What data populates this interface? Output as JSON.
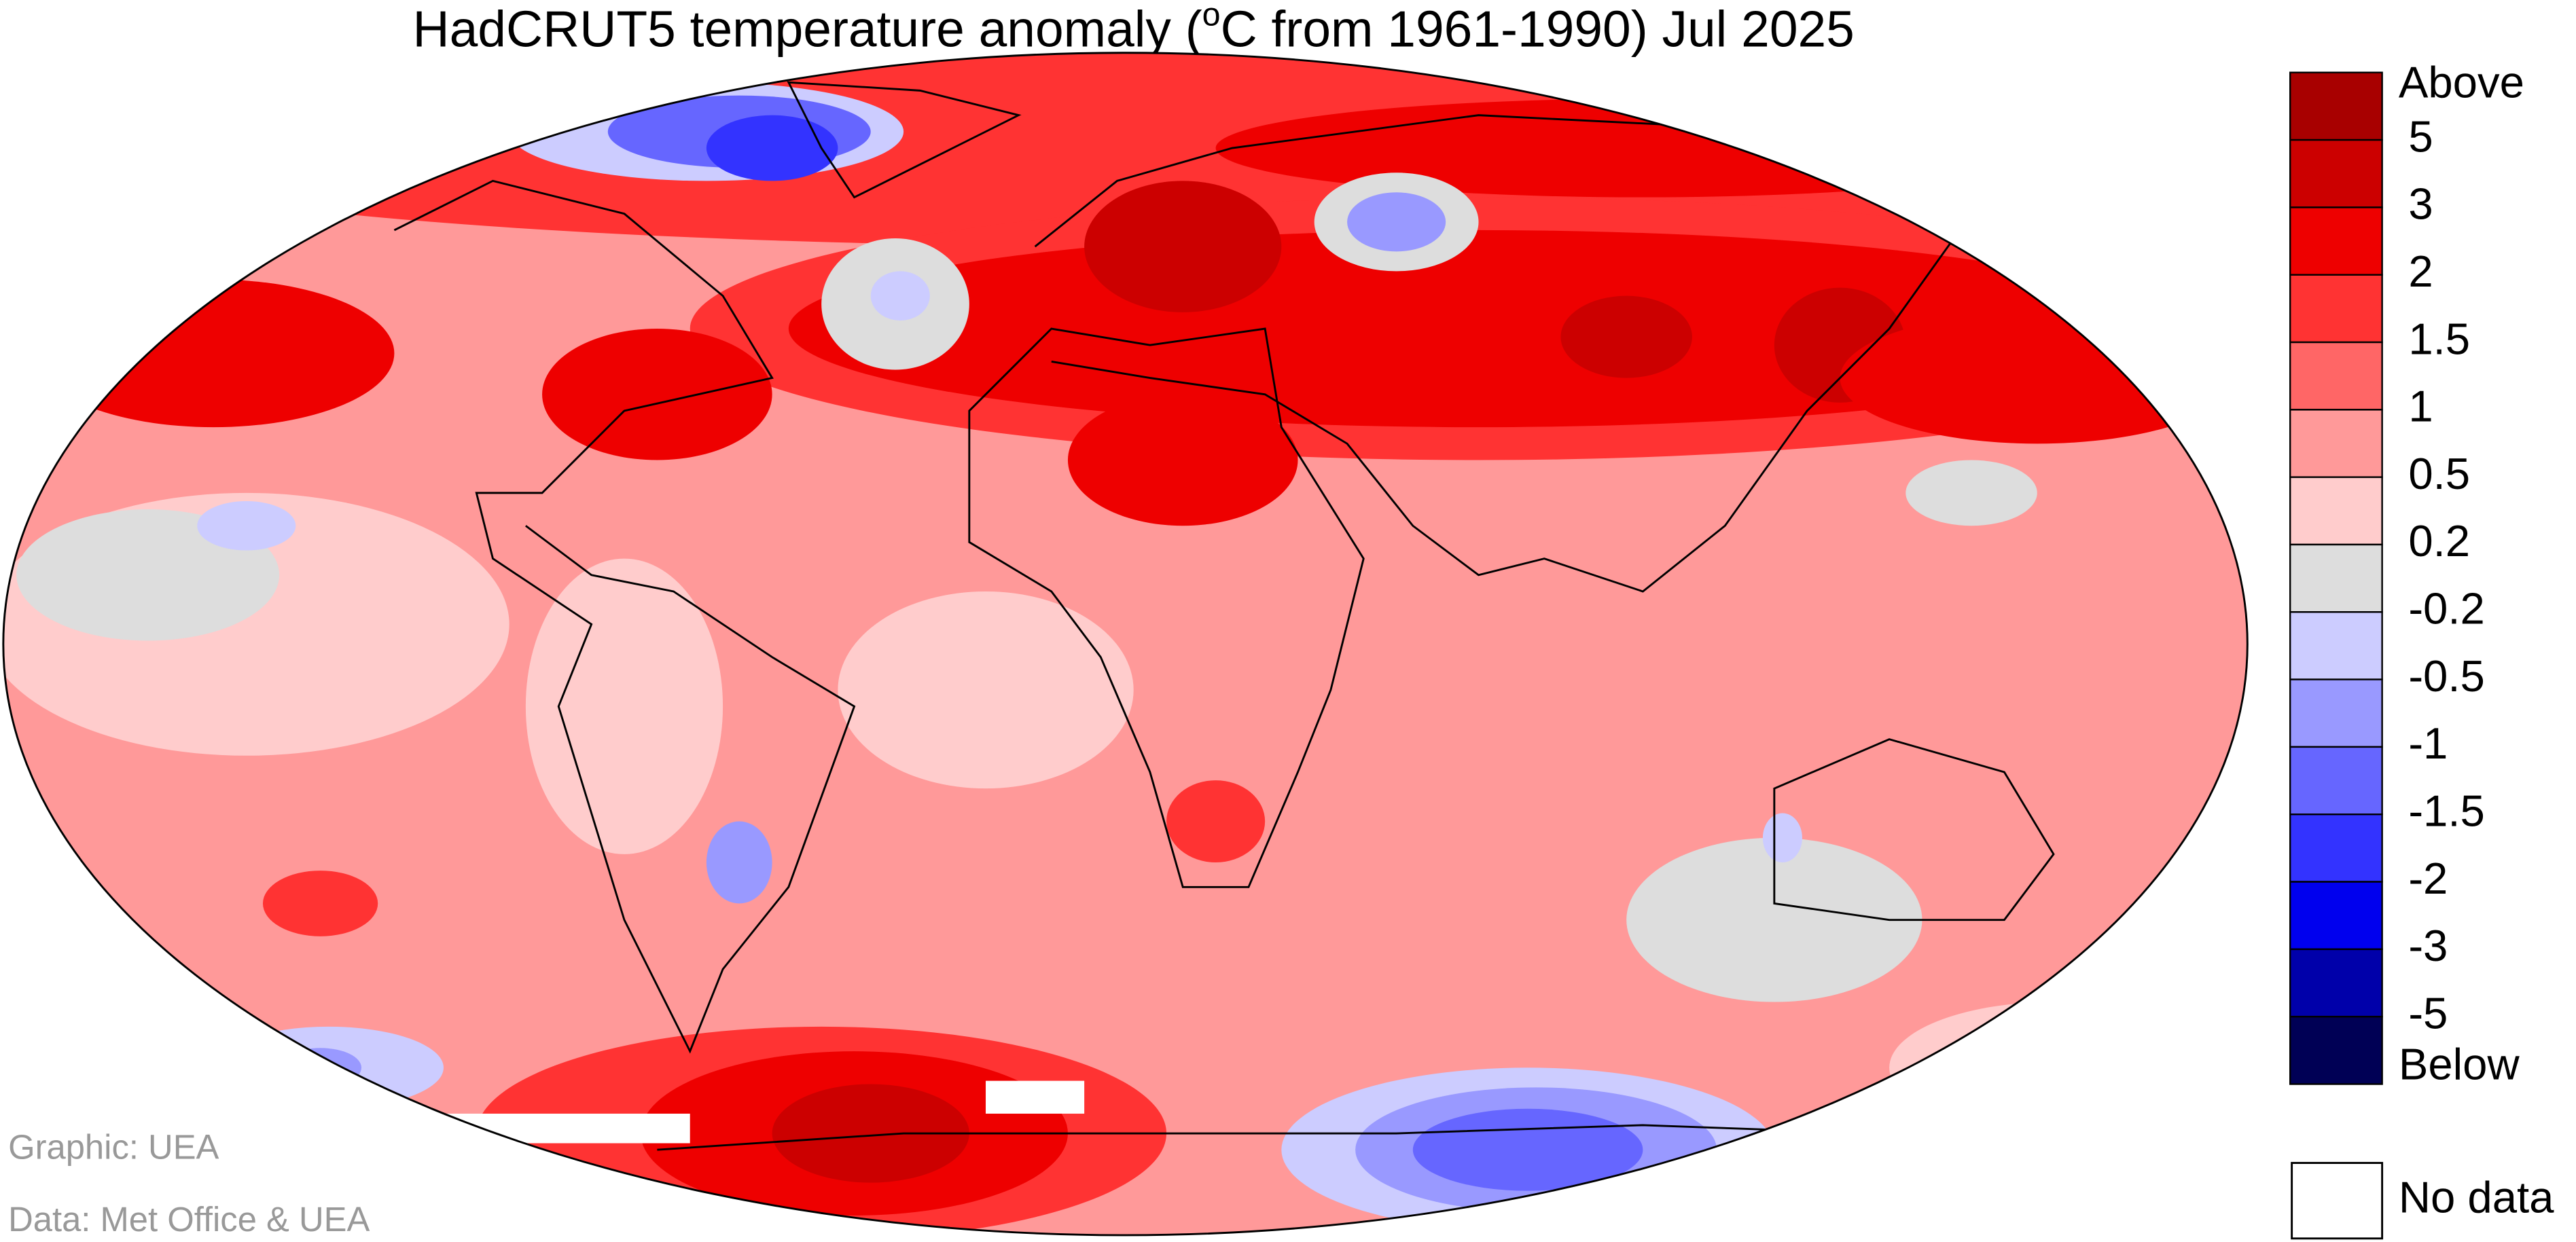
{
  "title": {
    "before": "HadCRUT5 temperature anomaly (",
    "superscript": "o",
    "after": "C from 1961-1990) Jul 2025"
  },
  "legend": {
    "top_label": "Above",
    "bottom_label": "Below",
    "labels": [
      "5",
      "3",
      "2",
      "1.5",
      "1",
      "0.5",
      "0.2",
      "-0.2",
      "-0.5",
      "-1",
      "-1.5",
      "-2",
      "-3",
      "-5"
    ],
    "colors": [
      "#a80000",
      "#cc0000",
      "#ee0000",
      "#ff3333",
      "#ff6666",
      "#ff9999",
      "#ffcccc",
      "#dddddd",
      "#ccccff",
      "#9999ff",
      "#6666ff",
      "#3333ff",
      "#0000ee",
      "#0000aa",
      "#000055"
    ]
  },
  "no_data": "No data",
  "credits": [
    "Graphic: UEA",
    "Data: Met Office & UEA"
  ]
}
